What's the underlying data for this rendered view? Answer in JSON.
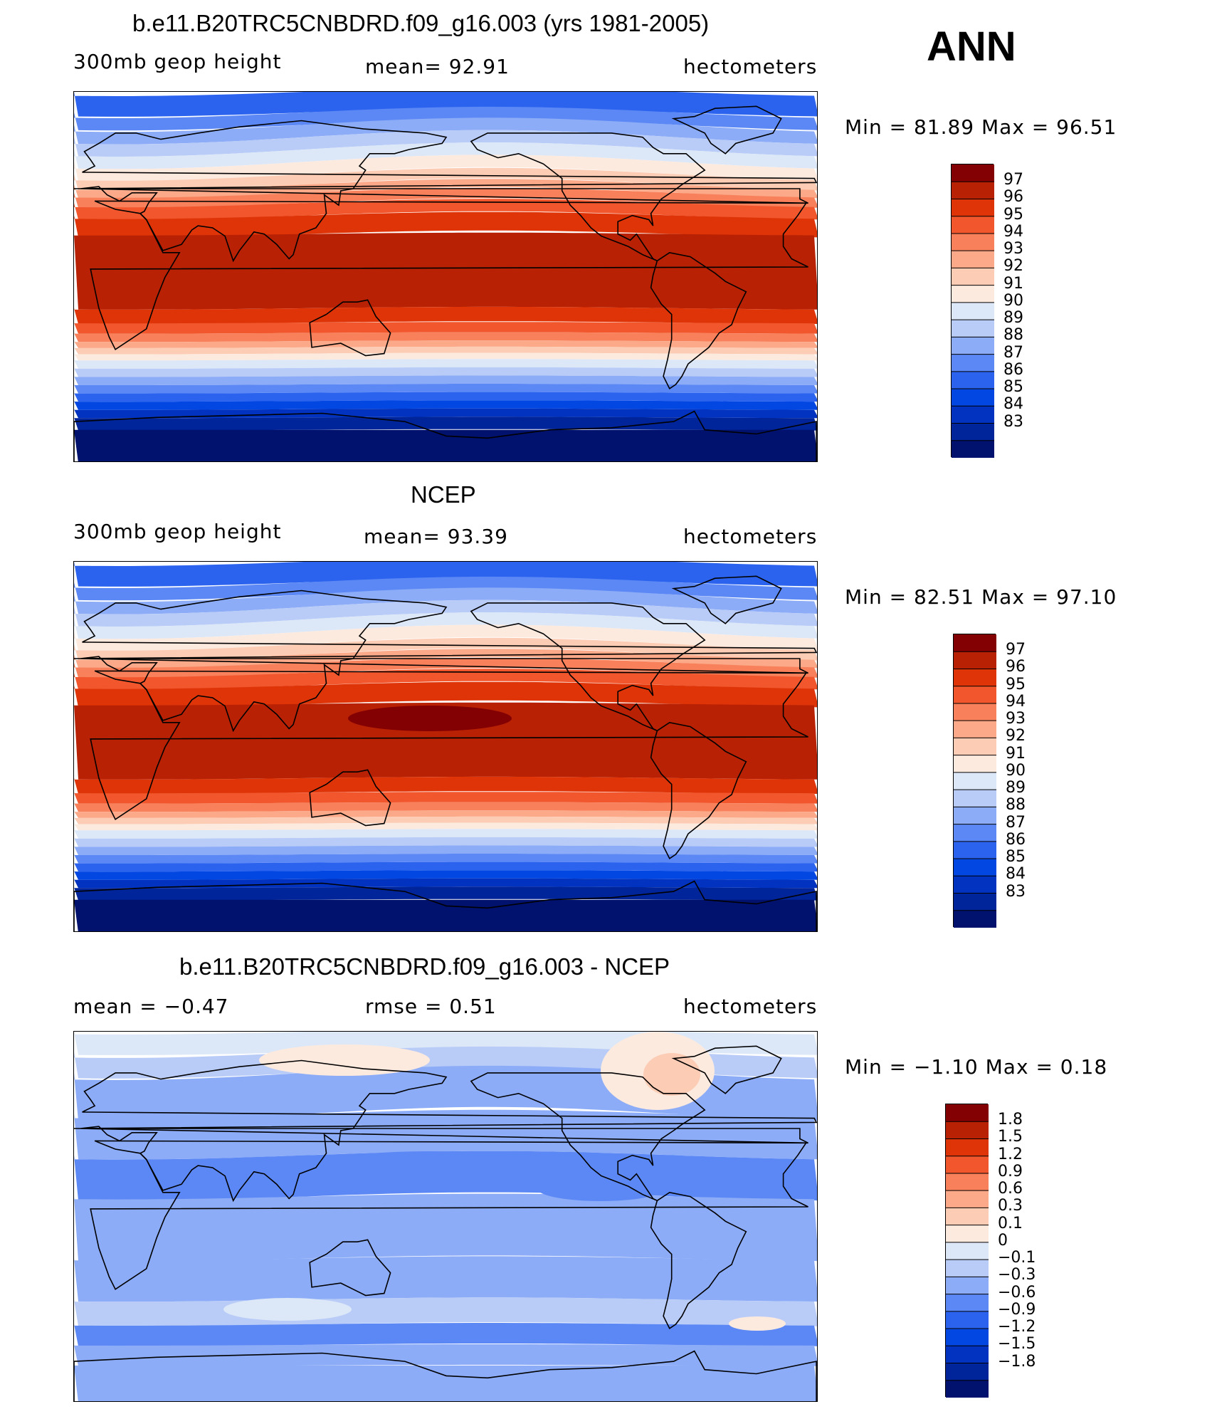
{
  "season": "ANN",
  "colors": {
    "main_scale": [
      "#00116e",
      "#00249a",
      "#0133c0",
      "#0347e2",
      "#2b63ef",
      "#5c88f5",
      "#8cacf7",
      "#b9ccf7",
      "#dce8f8",
      "#fdeadf",
      "#fcccb4",
      "#fba988",
      "#f8805b",
      "#f1562d",
      "#df3408",
      "#b82103",
      "#830103"
    ],
    "diff_scale": [
      "#00116e",
      "#00249a",
      "#0133c0",
      "#0347e2",
      "#2b63ef",
      "#5c88f5",
      "#8cacf7",
      "#b9ccf7",
      "#dce8f8",
      "#fdeadf",
      "#fcccb4",
      "#fba988",
      "#f8805b",
      "#f1562d",
      "#df3408",
      "#b82103",
      "#830103"
    ]
  },
  "panels": [
    {
      "title": "b.e11.B20TRC5CNBDRD.f09_g16.003 (yrs 1981-2005)",
      "left_label": "300mb  geop  height",
      "center_label": "mean=   92.91",
      "right_label": "hectometers",
      "minmax": "Min  =    81.89  Max  =    96.51",
      "colorbar_labels": [
        "97",
        "96",
        "95",
        "94",
        "93",
        "92",
        "91",
        "90",
        "89",
        "88",
        "87",
        "86",
        "85",
        "84",
        "83"
      ]
    },
    {
      "title": "NCEP",
      "left_label": "300mb  geop  height",
      "center_label": "mean=   93.39",
      "right_label": "hectometers",
      "minmax": "Min  =    82.51  Max  =    97.10",
      "colorbar_labels": [
        "97",
        "96",
        "95",
        "94",
        "93",
        "92",
        "91",
        "90",
        "89",
        "88",
        "87",
        "86",
        "85",
        "84",
        "83"
      ]
    },
    {
      "title": "b.e11.B20TRC5CNBDRD.f09_g16.003 - NCEP",
      "left_label": "mean  =    −0.47",
      "center_label": "rmse  =     0.51",
      "right_label": "hectometers",
      "minmax": "Min  =   −1.10  Max  =     0.18",
      "colorbar_labels": [
        "1.8",
        "1.5",
        "1.2",
        "0.9",
        "0.6",
        "0.3",
        "0.1",
        "0",
        "−0.1",
        "−0.3",
        "−0.6",
        "−0.9",
        "−1.2",
        "−1.5",
        "−1.8"
      ]
    }
  ]
}
